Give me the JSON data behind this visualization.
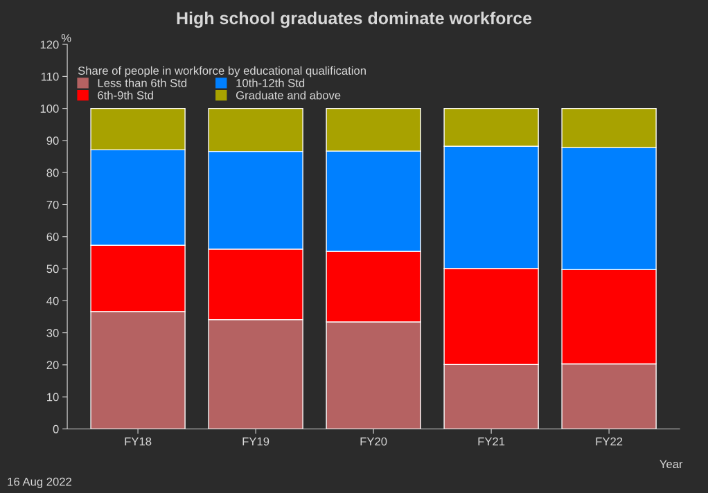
{
  "chart_data": {
    "type": "bar",
    "stacked": true,
    "title": "High school graduates dominate workforce",
    "ylabel": "%",
    "xlabel": "Year",
    "legend_title": "Share of people in workforce by educational qualification",
    "categories": [
      "FY18",
      "FY19",
      "FY20",
      "FY21",
      "FY22"
    ],
    "series": [
      {
        "name": "Less than 6th Std",
        "color": "#b56262",
        "values": [
          36.6,
          34.1,
          33.4,
          20.1,
          20.3
        ]
      },
      {
        "name": "6th-9th Std",
        "color": "#ff0000",
        "values": [
          20.7,
          22.0,
          22.0,
          30.0,
          29.4
        ]
      },
      {
        "name": "10th-12th Std",
        "color": "#0080ff",
        "values": [
          29.8,
          30.5,
          31.3,
          38.1,
          38.1
        ]
      },
      {
        "name": "Graduate and above",
        "color": "#a8a200",
        "values": [
          12.9,
          13.4,
          13.3,
          11.8,
          12.2
        ]
      }
    ],
    "ylim": [
      0,
      120
    ],
    "yticks": [
      0,
      10,
      20,
      30,
      40,
      50,
      60,
      70,
      80,
      90,
      100,
      110,
      120
    ],
    "grid": false,
    "legend": "top left",
    "annotations": [
      "16 Aug 2022"
    ]
  }
}
